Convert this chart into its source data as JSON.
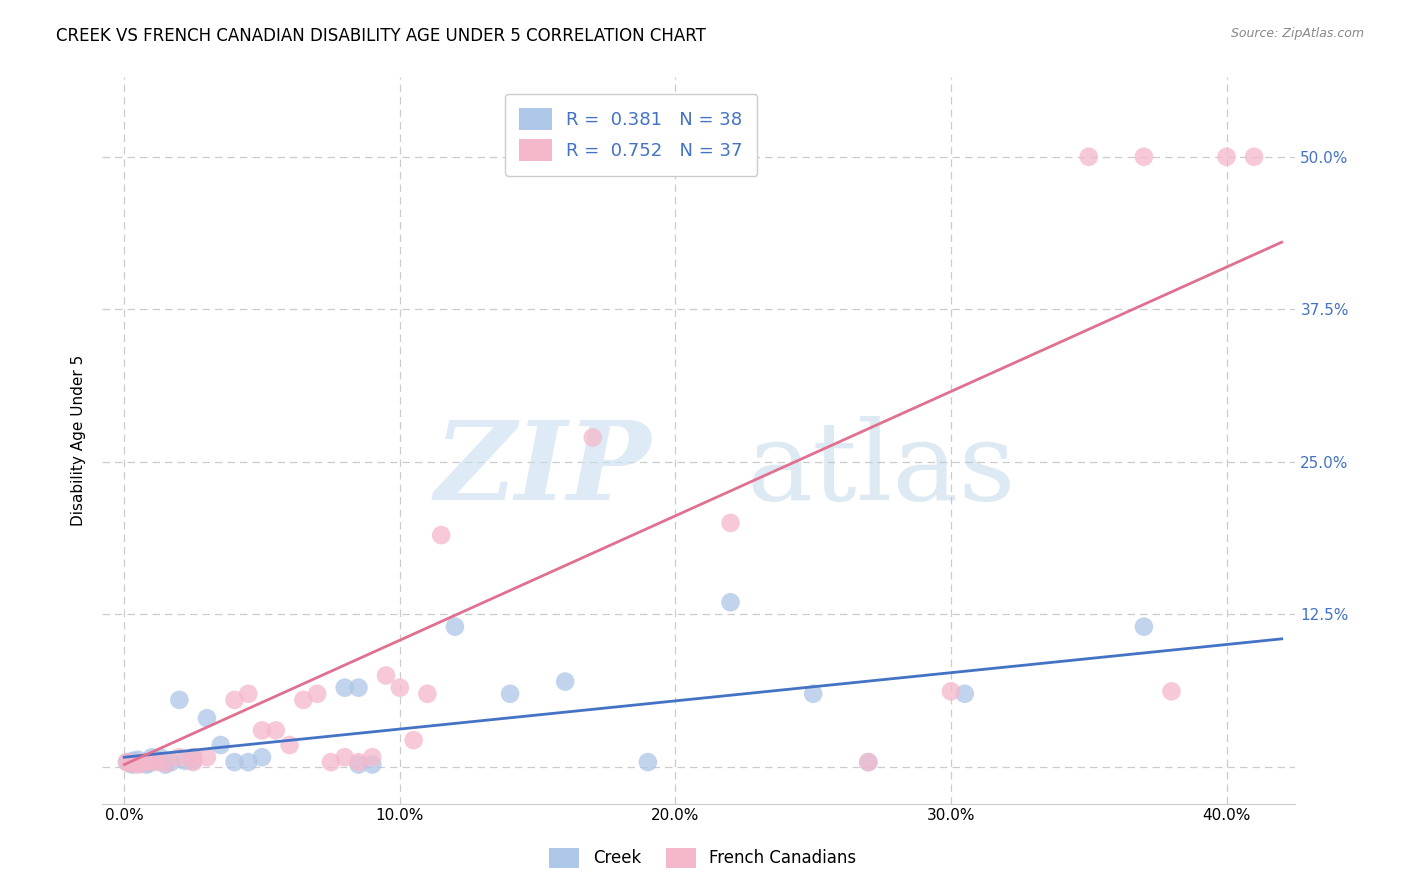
{
  "title": "CREEK VS FRENCH CANADIAN DISABILITY AGE UNDER 5 CORRELATION CHART",
  "source": "Source: ZipAtlas.com",
  "ylabel": "Disability Age Under 5",
  "x_ticks": [
    0.0,
    0.1,
    0.2,
    0.3,
    0.4
  ],
  "x_tick_labels": [
    "0.0%",
    "10.0%",
    "20.0%",
    "30.0%",
    "40.0%"
  ],
  "y_ticks": [
    0.0,
    0.125,
    0.25,
    0.375,
    0.5
  ],
  "y_tick_labels_right": [
    "",
    "12.5%",
    "25.0%",
    "37.5%",
    "50.0%"
  ],
  "xlim": [
    -0.008,
    0.425
  ],
  "ylim": [
    -0.03,
    0.565
  ],
  "creek_color": "#aec6e8",
  "french_color": "#f5b8cb",
  "creek_line_color": "#4472c4",
  "french_line_color": "#e07090",
  "legend_creek_R": "0.381",
  "legend_creek_N": "38",
  "legend_french_R": "0.752",
  "legend_french_N": "37",
  "creek_points_x": [
    0.001,
    0.002,
    0.003,
    0.003,
    0.004,
    0.005,
    0.005,
    0.006,
    0.007,
    0.008,
    0.009,
    0.01,
    0.012,
    0.013,
    0.015,
    0.017,
    0.02,
    0.022,
    0.025,
    0.025,
    0.03,
    0.035,
    0.04,
    0.045,
    0.05,
    0.08,
    0.085,
    0.085,
    0.09,
    0.12,
    0.14,
    0.16,
    0.19,
    0.22,
    0.25,
    0.27,
    0.305,
    0.37
  ],
  "creek_points_y": [
    0.004,
    0.003,
    0.002,
    0.005,
    0.004,
    0.004,
    0.006,
    0.003,
    0.004,
    0.002,
    0.003,
    0.008,
    0.005,
    0.008,
    0.002,
    0.004,
    0.055,
    0.005,
    0.005,
    0.008,
    0.04,
    0.018,
    0.004,
    0.004,
    0.008,
    0.065,
    0.065,
    0.002,
    0.002,
    0.115,
    0.06,
    0.07,
    0.004,
    0.135,
    0.06,
    0.004,
    0.06,
    0.115
  ],
  "french_points_x": [
    0.001,
    0.002,
    0.004,
    0.005,
    0.007,
    0.009,
    0.012,
    0.015,
    0.02,
    0.025,
    0.025,
    0.03,
    0.04,
    0.045,
    0.05,
    0.055,
    0.06,
    0.065,
    0.07,
    0.075,
    0.08,
    0.085,
    0.09,
    0.095,
    0.1,
    0.105,
    0.11,
    0.115,
    0.17,
    0.22,
    0.27,
    0.3,
    0.35,
    0.37,
    0.38,
    0.4,
    0.41
  ],
  "french_points_y": [
    0.004,
    0.003,
    0.003,
    0.002,
    0.004,
    0.004,
    0.004,
    0.003,
    0.008,
    0.004,
    0.008,
    0.008,
    0.055,
    0.06,
    0.03,
    0.03,
    0.018,
    0.055,
    0.06,
    0.004,
    0.008,
    0.004,
    0.008,
    0.075,
    0.065,
    0.022,
    0.06,
    0.19,
    0.27,
    0.2,
    0.004,
    0.062,
    0.5,
    0.5,
    0.062,
    0.5,
    0.5
  ],
  "creek_trend_x": [
    0.0,
    0.42
  ],
  "creek_trend_y": [
    0.008,
    0.105
  ],
  "french_trend_x": [
    0.0,
    0.42
  ],
  "french_trend_y": [
    0.002,
    0.43
  ],
  "grid_color": "#cccccc",
  "bg_color": "#ffffff",
  "title_fontsize": 12,
  "axis_label_fontsize": 11,
  "tick_fontsize": 11,
  "legend_fontsize": 13
}
